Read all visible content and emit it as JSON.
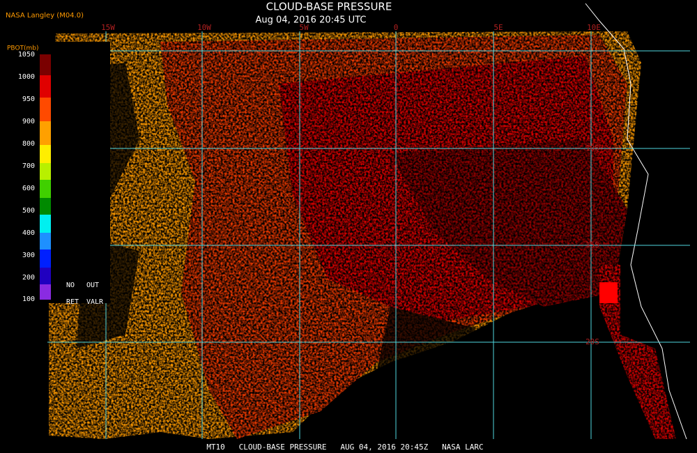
{
  "header": {
    "source": "NASA Langley (M04.0)",
    "title": "CLOUD-BASE PRESSURE",
    "time": "Aug 04, 2016 20:45 UTC"
  },
  "legend": {
    "title": "PBOT(mb)",
    "labels": [
      "1050",
      "1000",
      "950",
      "900",
      "800",
      "700",
      "600",
      "500",
      "400",
      "300",
      "200",
      "100"
    ],
    "no_retrieval": [
      "NO",
      "RET"
    ],
    "out_of_range": [
      "OUT",
      "VALR"
    ]
  },
  "map": {
    "longitudes": [
      "15W",
      "10W",
      "5W",
      "0",
      "5E",
      "10E"
    ],
    "latitudes": [
      "10S",
      "15S",
      "20S"
    ]
  },
  "footer": {
    "caption": "MT10   CLOUD-BASE PRESSURE   AUG 04, 2016 20:45Z   NASA LARC"
  }
}
